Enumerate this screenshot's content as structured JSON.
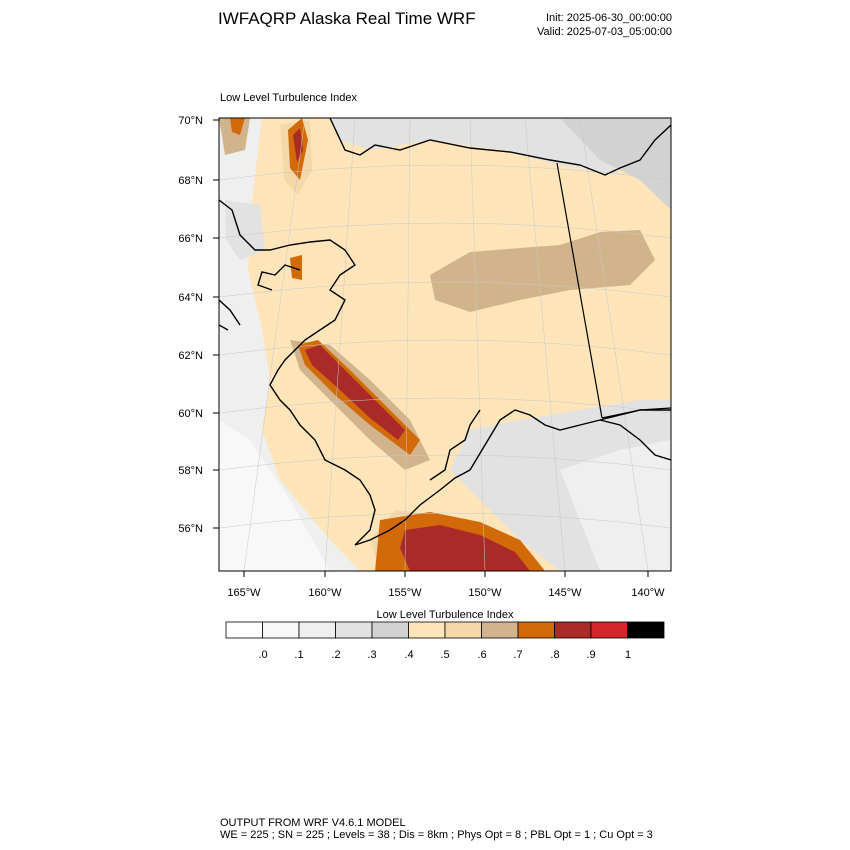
{
  "header": {
    "title": "IWFAQRP Alaska Real Time WRF",
    "init": "Init: 2025-06-30_00:00:00",
    "valid": "Valid: 2025-07-03_05:00:00"
  },
  "map": {
    "plot_title": "Low Level Turbulence Index",
    "lat_labels": [
      "70°N",
      "68°N",
      "66°N",
      "64°N",
      "62°N",
      "60°N",
      "58°N",
      "56°N"
    ],
    "lon_labels": [
      "165°W",
      "160°W",
      "155°W",
      "150°W",
      "145°W",
      "140°W"
    ]
  },
  "colorbar": {
    "title": "Low Level Turbulence Index",
    "labels": [
      ".0",
      ".1",
      ".2",
      ".3",
      ".4",
      ".5",
      ".6",
      ".7",
      ".8",
      ".9",
      "1"
    ],
    "colors": [
      "#ffffff",
      "#f8f8f8",
      "#efefef",
      "#e2e2e2",
      "#d2d2d2",
      "#fde5b9",
      "#f4d8a8",
      "#d2b48c",
      "#d26a0a",
      "#aa2a28",
      "#d7262b",
      "#000000"
    ]
  },
  "footer": {
    "line1": "OUTPUT FROM WRF V4.6.1 MODEL",
    "line2": "WE = 225 ; SN = 225 ; Levels = 38 ; Dis = 8km ; Phys Opt = 8 ; PBL Opt = 1 ; Cu Opt = 3"
  }
}
